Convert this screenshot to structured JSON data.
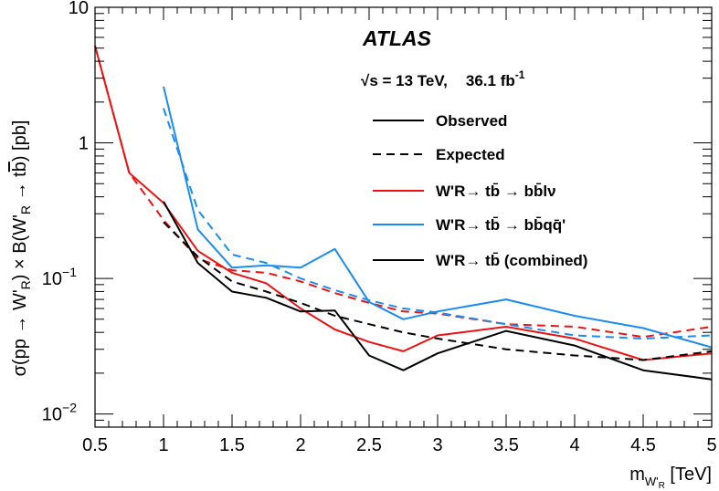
{
  "chart_data": {
    "type": "line",
    "experiment": "ATLAS",
    "energy_label": "√s = 13 TeV,",
    "energy_sqrt": "√",
    "energy_rest": "s = 13 TeV,",
    "lumi_value": "36.1 fb",
    "lumi_exponent": "-1",
    "xlabel": {
      "base": "m",
      "sub1": "W'",
      "sub2": "R",
      "unit": " [TeV]"
    },
    "ylabel": "σ(pp → W'R) × B(W'R → tb̄) [pb]",
    "ylabel_parts": {
      "a": "σ(pp → W'",
      "a_sub": "R",
      "b": ") × B(W'",
      "b_sub": "R",
      "c": " → t",
      "c_bar": "b",
      "d": ") [pb]"
    },
    "xlim": [
      0.5,
      5
    ],
    "ylim": [
      0.008,
      10
    ],
    "yscale": "log",
    "x_ticks": [
      {
        "v": 0.5,
        "label": "0.5"
      },
      {
        "v": 1,
        "label": "1"
      },
      {
        "v": 1.5,
        "label": "1.5"
      },
      {
        "v": 2,
        "label": "2"
      },
      {
        "v": 2.5,
        "label": "2.5"
      },
      {
        "v": 3,
        "label": "3"
      },
      {
        "v": 3.5,
        "label": "3.5"
      },
      {
        "v": 4,
        "label": "4"
      },
      {
        "v": 4.5,
        "label": "4.5"
      },
      {
        "v": 5,
        "label": "5"
      }
    ],
    "y_ticks": [
      {
        "v": 0.01,
        "base": "10",
        "exp": "−2"
      },
      {
        "v": 0.1,
        "base": "10",
        "exp": "−1"
      },
      {
        "v": 1,
        "base": "1",
        "exp": ""
      },
      {
        "v": 10,
        "base": "10",
        "exp": ""
      }
    ],
    "legend": [
      {
        "id": "observed",
        "color": "#000000",
        "dashed": false,
        "text": "Observed"
      },
      {
        "id": "expected",
        "color": "#000000",
        "dashed": true,
        "text": "Expected"
      },
      {
        "id": "lep",
        "color": "#ee1111",
        "dashed": false,
        "text": "W'R→ tb̄ → bb̄lν"
      },
      {
        "id": "had",
        "color": "#1a8cf0",
        "dashed": false,
        "text": "W'R→ tb̄ → bb̄qq̄'"
      },
      {
        "id": "comb",
        "color": "#000000",
        "dashed": false,
        "text": "W'R→ tb̄ (combined)"
      }
    ],
    "series": [
      {
        "id": "lep-observed",
        "channel": "lep",
        "kind": "observed",
        "color": "#ee1111",
        "dashed": false,
        "x": [
          0.5,
          0.75,
          1.0,
          1.25,
          1.5,
          1.75,
          2.0,
          2.25,
          2.5,
          2.75,
          3.0,
          3.5,
          4.0,
          4.5,
          5.0
        ],
        "y": [
          5.2,
          0.6,
          0.36,
          0.16,
          0.11,
          0.092,
          0.06,
          0.042,
          0.034,
          0.029,
          0.038,
          0.044,
          0.036,
          0.025,
          0.028
        ]
      },
      {
        "id": "lep-expected",
        "channel": "lep",
        "kind": "expected",
        "color": "#ee1111",
        "dashed": true,
        "x": [
          0.5,
          0.75,
          1.0,
          1.25,
          1.5,
          1.75,
          2.0,
          2.25,
          2.5,
          2.75,
          3.0,
          3.5,
          4.0,
          4.5,
          5.0
        ],
        "y": [
          5.2,
          0.6,
          0.27,
          0.14,
          0.115,
          0.11,
          0.095,
          0.078,
          0.066,
          0.057,
          0.055,
          0.046,
          0.044,
          0.037,
          0.044
        ]
      },
      {
        "id": "had-observed",
        "channel": "had",
        "kind": "observed",
        "color": "#1a8cf0",
        "dashed": false,
        "x": [
          1.0,
          1.25,
          1.5,
          1.75,
          2.0,
          2.25,
          2.5,
          2.75,
          3.0,
          3.5,
          4.0,
          4.5,
          5.0
        ],
        "y": [
          2.6,
          0.23,
          0.12,
          0.125,
          0.12,
          0.165,
          0.067,
          0.05,
          0.057,
          0.07,
          0.053,
          0.043,
          0.031
        ]
      },
      {
        "id": "had-expected",
        "channel": "had",
        "kind": "expected",
        "color": "#1a8cf0",
        "dashed": true,
        "x": [
          1.0,
          1.25,
          1.5,
          1.75,
          2.0,
          2.25,
          2.5,
          2.75,
          3.0,
          3.5,
          4.0,
          4.5,
          5.0
        ],
        "y": [
          1.8,
          0.32,
          0.15,
          0.13,
          0.1,
          0.082,
          0.069,
          0.06,
          0.056,
          0.046,
          0.038,
          0.036,
          0.038
        ]
      },
      {
        "id": "comb-observed",
        "channel": "comb",
        "kind": "observed",
        "color": "#000000",
        "dashed": false,
        "x": [
          1.0,
          1.25,
          1.5,
          1.75,
          2.0,
          2.25,
          2.5,
          2.75,
          3.0,
          3.5,
          4.0,
          4.5,
          5.0
        ],
        "y": [
          0.37,
          0.13,
          0.08,
          0.072,
          0.057,
          0.058,
          0.027,
          0.021,
          0.028,
          0.041,
          0.032,
          0.021,
          0.018
        ]
      },
      {
        "id": "comb-expected",
        "channel": "comb",
        "kind": "expected",
        "color": "#000000",
        "dashed": true,
        "x": [
          1.0,
          1.25,
          1.5,
          1.75,
          2.0,
          2.25,
          2.5,
          2.75,
          3.0,
          3.5,
          4.0,
          4.5,
          5.0
        ],
        "y": [
          0.26,
          0.145,
          0.095,
          0.08,
          0.066,
          0.053,
          0.046,
          0.04,
          0.036,
          0.03,
          0.027,
          0.025,
          0.029
        ]
      }
    ],
    "grid": false,
    "legend_position": "top-right"
  }
}
